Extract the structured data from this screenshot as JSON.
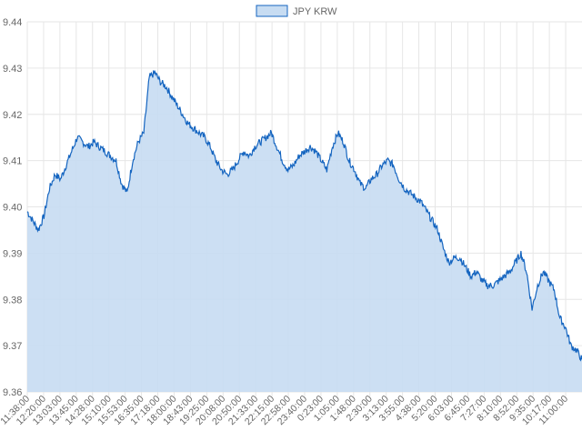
{
  "chart_data": {
    "type": "area",
    "title": "",
    "xlabel": "",
    "ylabel": "",
    "legend": {
      "position": "top-center",
      "label": "JPY KRW"
    },
    "series": [
      {
        "name": "JPY KRW",
        "x": [
          "11:38:00",
          "11:50:00",
          "12:05:00",
          "12:20:00",
          "12:35:00",
          "12:50:00",
          "13:03:00",
          "13:15:00",
          "13:30:00",
          "13:45:00",
          "14:00:00",
          "14:15:00",
          "14:28:00",
          "14:40:00",
          "15:00:00",
          "15:10:00",
          "15:25:00",
          "15:40:00",
          "15:53:00",
          "16:05:00",
          "16:20:00",
          "16:35:00",
          "16:45:00",
          "17:00:00",
          "17:18:00",
          "17:30:00",
          "17:45:00",
          "18:00:00",
          "18:15:00",
          "18:30:00",
          "18:43:00",
          "19:00:00",
          "19:12:00",
          "19:25:00",
          "19:40:00",
          "19:55:00",
          "20:08:00",
          "20:25:00",
          "20:40:00",
          "20:50:00",
          "21:05:00",
          "21:20:00",
          "21:33:00",
          "21:45:00",
          "22:00:00",
          "22:15:00",
          "22:30:00",
          "22:45:00",
          "22:58:00",
          "23:15:00",
          "23:30:00",
          "23:40:00",
          "23:55:00",
          "0:10:00",
          "0:23:00",
          "0:38:00",
          "0:50:00",
          "1:05:00",
          "1:20:00",
          "1:35:00",
          "1:48:00",
          "2:05:00",
          "2:18:00",
          "2:30:00",
          "2:45:00",
          "3:00:00",
          "3:13:00",
          "3:30:00",
          "3:45:00",
          "3:55:00",
          "4:10:00",
          "4:25:00",
          "4:38:00",
          "4:50:00",
          "5:05:00",
          "5:20:00",
          "5:35:00",
          "5:50:00",
          "6:03:00",
          "6:15:00",
          "6:30:00",
          "6:45:00",
          "7:00:00",
          "7:15:00",
          "7:27:00",
          "7:40:00",
          "7:55:00",
          "8:10:00",
          "8:25:00",
          "8:40:00",
          "8:52:00",
          "9:05:00",
          "9:20:00",
          "9:35:00",
          "9:50:00",
          "10:05:00",
          "10:17:00",
          "10:30:00",
          "10:45:00",
          "11:00:00",
          "11:15:00"
        ],
        "values": [
          9.399,
          9.397,
          9.395,
          9.398,
          9.404,
          9.407,
          9.406,
          9.409,
          9.412,
          9.415,
          9.414,
          9.413,
          9.414,
          9.413,
          9.412,
          9.411,
          9.41,
          9.405,
          9.403,
          9.41,
          9.414,
          9.416,
          9.428,
          9.429,
          9.427,
          9.426,
          9.424,
          9.422,
          9.42,
          9.418,
          9.417,
          9.416,
          9.415,
          9.413,
          9.41,
          9.408,
          9.407,
          9.408,
          9.41,
          9.412,
          9.411,
          9.413,
          9.414,
          9.415,
          9.416,
          9.413,
          9.41,
          9.408,
          9.409,
          9.411,
          9.412,
          9.413,
          9.412,
          9.41,
          9.408,
          9.413,
          9.416,
          9.414,
          9.41,
          9.408,
          9.405,
          9.404,
          9.406,
          9.407,
          9.409,
          9.41,
          9.409,
          9.406,
          9.404,
          9.403,
          9.402,
          9.401,
          9.399,
          9.397,
          9.395,
          9.391,
          9.388,
          9.389,
          9.389,
          9.387,
          9.385,
          9.386,
          9.384,
          9.383,
          9.383,
          9.384,
          9.385,
          9.386,
          9.388,
          9.39,
          9.386,
          9.378,
          9.383,
          9.386,
          9.384,
          9.382,
          9.376,
          9.374,
          9.37,
          9.369,
          9.367
        ]
      }
    ],
    "x_tick_labels": [
      "11:38:00",
      "12:20:00",
      "13:03:00",
      "13:45:00",
      "14:28:00",
      "15:10:00",
      "15:53:00",
      "16:35:00",
      "17:18:00",
      "18:00:00",
      "18:43:00",
      "19:25:00",
      "20:08:00",
      "20:50:00",
      "21:33:00",
      "22:15:00",
      "22:58:00",
      "23:40:00",
      "0:23:00",
      "1:05:00",
      "1:48:00",
      "2:30:00",
      "3:13:00",
      "3:55:00",
      "4:38:00",
      "5:20:00",
      "6:03:00",
      "6:45:00",
      "7:27:00",
      "8:10:00",
      "8:52:00",
      "9:35:00",
      "10:17:00",
      "11:00:00"
    ],
    "y_tick_labels": [
      "9.36",
      "9.37",
      "9.38",
      "9.39",
      "9.40",
      "9.41",
      "9.42",
      "9.43",
      "9.44"
    ],
    "ylim": [
      9.36,
      9.44
    ],
    "grid": true,
    "colors": {
      "line": "#1565c0",
      "fill": "#c7dcf2",
      "grid": "#e6e6e6",
      "axis_text": "#666666",
      "legend_border": "#1565c0",
      "legend_fill": "#c7dcf2"
    }
  }
}
